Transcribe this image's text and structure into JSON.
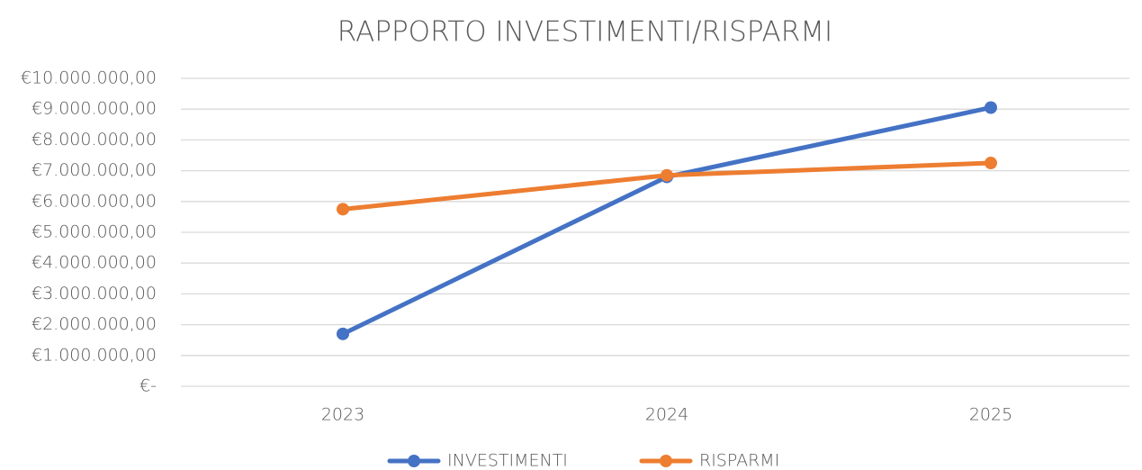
{
  "chart_data": {
    "type": "line",
    "title": "RAPPORTO INVESTIMENTI/RISPARMI",
    "categories": [
      "2023",
      "2024",
      "2025"
    ],
    "series": [
      {
        "name": "INVESTIMENTI",
        "color": "#4472c4",
        "values": [
          1700000,
          6800000,
          9050000
        ]
      },
      {
        "name": "RISPARMI",
        "color": "#ed7d31",
        "values": [
          5750000,
          6850000,
          7250000
        ]
      }
    ],
    "ylim": [
      0,
      10000000
    ],
    "yticks": [
      {
        "value": 0,
        "label": "€-"
      },
      {
        "value": 1000000,
        "label": "€1.000.000,00"
      },
      {
        "value": 2000000,
        "label": "€2.000.000,00"
      },
      {
        "value": 3000000,
        "label": "€3.000.000,00"
      },
      {
        "value": 4000000,
        "label": "€4.000.000,00"
      },
      {
        "value": 5000000,
        "label": "€5.000.000,00"
      },
      {
        "value": 6000000,
        "label": "€6.000.000,00"
      },
      {
        "value": 7000000,
        "label": "€7.000.000,00"
      },
      {
        "value": 8000000,
        "label": "€8.000.000,00"
      },
      {
        "value": 9000000,
        "label": "€9.000.000,00"
      },
      {
        "value": 10000000,
        "label": "€10.000.000,00"
      }
    ],
    "grid": true,
    "legend": "bottom"
  }
}
